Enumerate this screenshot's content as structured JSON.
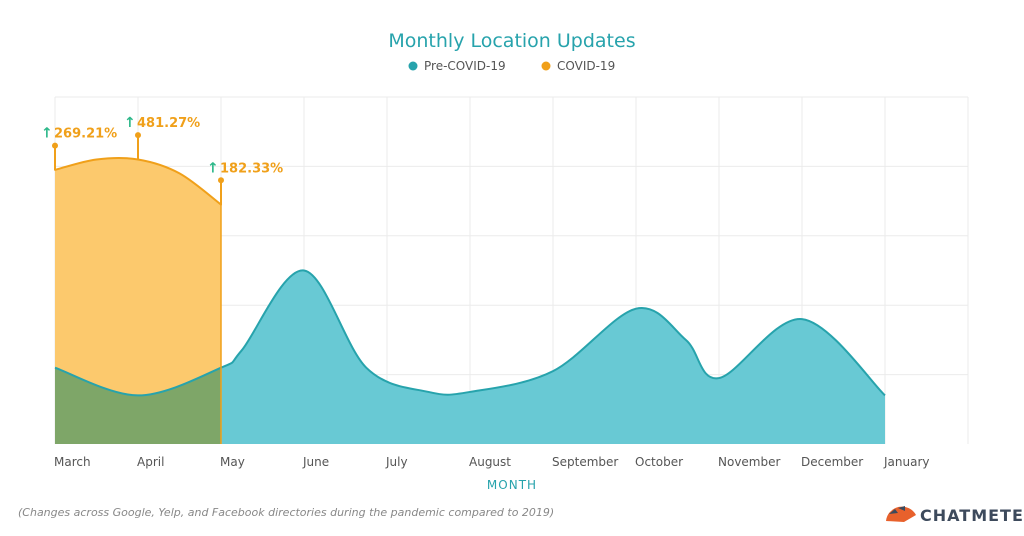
{
  "chart_data": {
    "type": "area",
    "title": "Monthly Location Updates",
    "xlabel": "MONTH",
    "ylabel": "",
    "categories": [
      "March",
      "April",
      "May",
      "June",
      "July",
      "August",
      "September",
      "October",
      "November",
      "December",
      "January"
    ],
    "ylim": [
      0,
      100
    ],
    "grid": true,
    "legend_position": "top",
    "series": [
      {
        "name": "Pre-COVID-19",
        "color": "#27a3ac",
        "fill": "#68c9d4",
        "x": [
          0,
          1,
          2,
          2.25,
          3,
          3.75,
          4.5,
          5,
          6,
          7,
          7.6,
          8,
          9,
          10
        ],
        "values": [
          22,
          14,
          22,
          27,
          50,
          22,
          15,
          15,
          21,
          39,
          30,
          19,
          36,
          14
        ]
      },
      {
        "name": "COVID-19",
        "color": "#f0a01a",
        "fill": "#fcc96d",
        "x": [
          0,
          0.5,
          1,
          1.5,
          2
        ],
        "values": [
          79,
          82,
          82,
          78,
          69
        ]
      }
    ],
    "annotations": [
      {
        "category": "March",
        "label": "269.21%",
        "value": 86
      },
      {
        "category": "April",
        "label": "481.27%",
        "value": 89
      },
      {
        "category": "May",
        "label": "182.33%",
        "value": 76
      }
    ],
    "annotation_color": "#f0a01a",
    "arrow_color": "#2eb88a",
    "overlap_fill": "#7ea668"
  },
  "caption": "(Changes across Google, Yelp, and Facebook directories during the pandemic compared to 2019)",
  "brand": {
    "name": "CHATMETER",
    "logo_icon": "chatmeter-logo-icon",
    "logo_color": "#e8612c"
  }
}
